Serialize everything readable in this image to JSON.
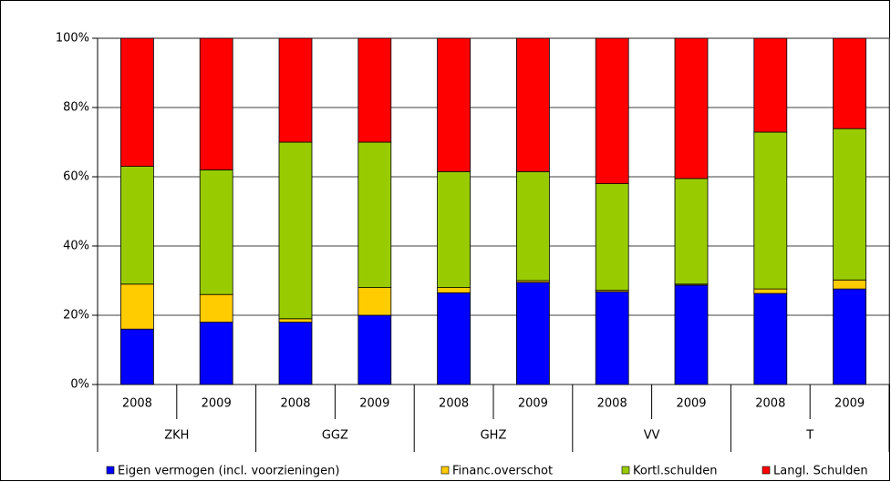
{
  "chart_data": {
    "type": "stacked_bar",
    "categories": [
      "2008",
      "2009",
      "2008",
      "2009",
      "2008",
      "2009",
      "2008",
      "2009",
      "2008",
      "2009"
    ],
    "groups": [
      "ZKH",
      "GGZ",
      "GHZ",
      "VV",
      "T"
    ],
    "series": [
      {
        "name": "Eigen vermogen (incl. voorzieningen)",
        "color": "#0000ff",
        "values": [
          16,
          18,
          18,
          20,
          26.5,
          29.5,
          26.8,
          28.7,
          26.3,
          27.6
        ]
      },
      {
        "name": "Financ.overschot",
        "color": "#ffcc00",
        "values": [
          13,
          8,
          1,
          8,
          1.5,
          0.5,
          0.4,
          0.3,
          1.3,
          2.6
        ]
      },
      {
        "name": "Kortl.schulden",
        "color": "#99cc00",
        "values": [
          34,
          36,
          51,
          42,
          33.5,
          31.5,
          30.8,
          30.5,
          45.3,
          43.7
        ]
      },
      {
        "name": "Langl. Schulden",
        "color": "#ff0000",
        "values": [
          37,
          38,
          30,
          30,
          38.5,
          38.5,
          42,
          40.5,
          27.1,
          26.1
        ]
      }
    ],
    "ylim": [
      0,
      100
    ],
    "yticks": [
      {
        "value": 0,
        "label": "0%"
      },
      {
        "value": 20,
        "label": "20%"
      },
      {
        "value": 40,
        "label": "40%"
      },
      {
        "value": 60,
        "label": "60%"
      },
      {
        "value": 80,
        "label": "80%"
      },
      {
        "value": 100,
        "label": "100%"
      }
    ],
    "grid": true,
    "legend": "bottom"
  }
}
